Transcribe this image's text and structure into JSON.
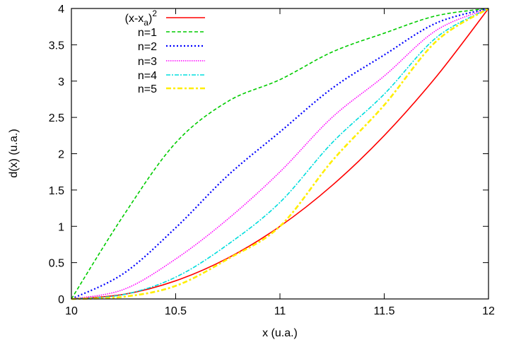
{
  "chart_data": {
    "type": "line",
    "title": "",
    "xlabel": "x (u.a.)",
    "ylabel": "d(x) (u.a.)",
    "xlim": [
      10,
      12
    ],
    "ylim": [
      0,
      4
    ],
    "xticks": [
      "10",
      "10.5",
      "11",
      "11.5",
      "12"
    ],
    "yticks": [
      "0",
      "0.5",
      "1",
      "1.5",
      "2",
      "2.5",
      "3",
      "3.5",
      "4"
    ],
    "grid": false,
    "legend_position": "top-left",
    "x": [
      10,
      10.25,
      10.5,
      10.75,
      11,
      11.25,
      11.5,
      11.75,
      12
    ],
    "series": [
      {
        "name": "(x-x_a)^2",
        "label_main": "(x-x",
        "label_sub": "a",
        "label_close": ")",
        "label_sup": "2",
        "color": "#ff0000",
        "dash": "solid",
        "values": [
          0,
          0.0625,
          0.25,
          0.5625,
          1,
          1.5625,
          2.25,
          3.0625,
          4
        ]
      },
      {
        "name": "n=1",
        "color": "#00cc00",
        "dash": "dashed",
        "values": [
          0,
          1.15,
          2.15,
          2.72,
          3.02,
          3.4,
          3.66,
          3.9,
          4
        ]
      },
      {
        "name": "n=2",
        "color": "#0000ff",
        "dash": "dotted",
        "values": [
          0,
          0.35,
          0.98,
          1.7,
          2.3,
          2.9,
          3.36,
          3.8,
          4
        ]
      },
      {
        "name": "n=3",
        "color": "#ff00ff",
        "dash": "fine-dotted",
        "values": [
          0,
          0.13,
          0.55,
          1.1,
          1.75,
          2.5,
          3.07,
          3.7,
          4
        ]
      },
      {
        "name": "n=4",
        "color": "#00dddd",
        "dash": "dash-dot",
        "values": [
          0,
          0.06,
          0.3,
          0.75,
          1.33,
          2.15,
          2.82,
          3.6,
          4
        ]
      },
      {
        "name": "n=5",
        "color": "#ffee00",
        "dash": "dash-dot-thick",
        "values": [
          0,
          0.03,
          0.18,
          0.55,
          1.0,
          1.9,
          2.67,
          3.55,
          4
        ]
      }
    ]
  }
}
